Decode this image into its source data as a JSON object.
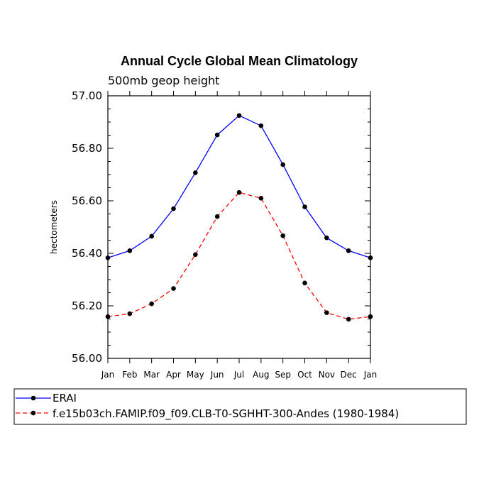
{
  "chart_data": {
    "type": "line",
    "title": "Annual Cycle Global Mean Climatology",
    "subtitle": "500mb geop height",
    "xlabel": "",
    "ylabel": "hectometers",
    "categories": [
      "Jan",
      "Feb",
      "Mar",
      "Apr",
      "May",
      "Jun",
      "Jul",
      "Aug",
      "Sep",
      "Oct",
      "Nov",
      "Dec",
      "Jan"
    ],
    "ylim": [
      56.0,
      57.0
    ],
    "yticks": [
      "56.00",
      "56.20",
      "56.40",
      "56.60",
      "56.80",
      "57.00"
    ],
    "series": [
      {
        "name": "ERAI",
        "color": "#0000ff",
        "dash": "solid",
        "values": [
          56.383,
          56.41,
          56.465,
          56.57,
          56.707,
          56.851,
          56.925,
          56.886,
          56.738,
          56.577,
          56.459,
          56.41,
          56.383
        ]
      },
      {
        "name": "f.e15b03ch.FAMIP.f09_f09.CLB-T0-SGHHT-300-Andes (1980-1984)",
        "color": "#ff0000",
        "dash": "dashed",
        "values": [
          56.159,
          56.17,
          56.208,
          56.266,
          56.395,
          56.54,
          56.632,
          56.61,
          56.467,
          56.287,
          56.174,
          56.149,
          56.159
        ]
      }
    ],
    "legend_position": "bottom-left"
  }
}
